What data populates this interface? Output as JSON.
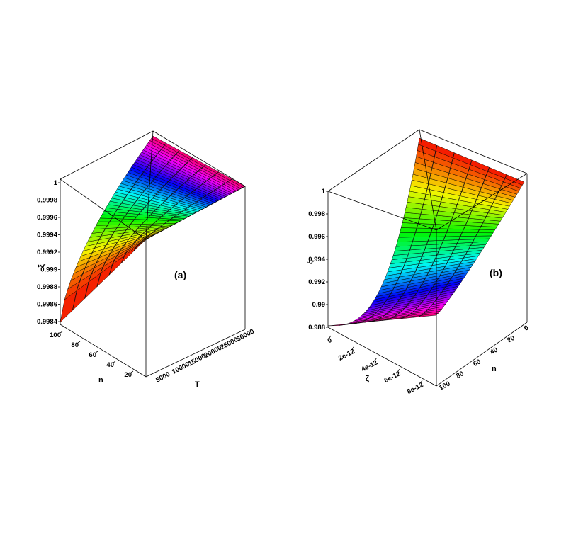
{
  "figure": {
    "panels": [
      {
        "id": "a",
        "panel_label": "(a)",
        "x_axis": {
          "label": "n",
          "ticks": [
            "100",
            "80",
            "60",
            "40",
            "20"
          ]
        },
        "y_axis": {
          "label": "T",
          "ticks": [
            "5000",
            "10000",
            "15000",
            "20000",
            "25000",
            "30000"
          ]
        },
        "z_axis": {
          "label": "ξ",
          "ticks": [
            "0.9984",
            "0.9986",
            "0.9988",
            "0.999",
            "0.9992",
            "0.9994",
            "0.9996",
            "0.9998",
            "1"
          ]
        }
      },
      {
        "id": "b",
        "panel_label": "(b)",
        "x_axis": {
          "label": "ζ",
          "ticks": [
            "0",
            "2e-12",
            "4e-12",
            "6e-12",
            "8e-12"
          ]
        },
        "y_axis": {
          "label": "n",
          "ticks": [
            "100",
            "80",
            "60",
            "40",
            "20",
            "0"
          ]
        },
        "z_axis": {
          "label": "ξ",
          "ticks": [
            "0.988",
            "0.99",
            "0.992",
            "0.994",
            "0.996",
            "0.998",
            "1"
          ]
        }
      }
    ]
  },
  "chart_data": [
    {
      "type": "surface",
      "panel": "(a)",
      "x": {
        "label": "n",
        "range": [
          0,
          100
        ]
      },
      "y": {
        "label": "T",
        "range": [
          5000,
          30000
        ]
      },
      "z": {
        "label": "ξ",
        "range": [
          0.9984,
          1.0
        ]
      },
      "grid": false,
      "colormap": "rainbow (z-height)"
    },
    {
      "type": "surface",
      "panel": "(b)",
      "x": {
        "label": "ζ",
        "range": [
          0,
          9e-12
        ]
      },
      "y": {
        "label": "n",
        "range": [
          0,
          100
        ]
      },
      "z": {
        "label": "ξ",
        "range": [
          0.988,
          1.0
        ]
      },
      "grid": false,
      "colormap": "rainbow (z-height)"
    }
  ]
}
